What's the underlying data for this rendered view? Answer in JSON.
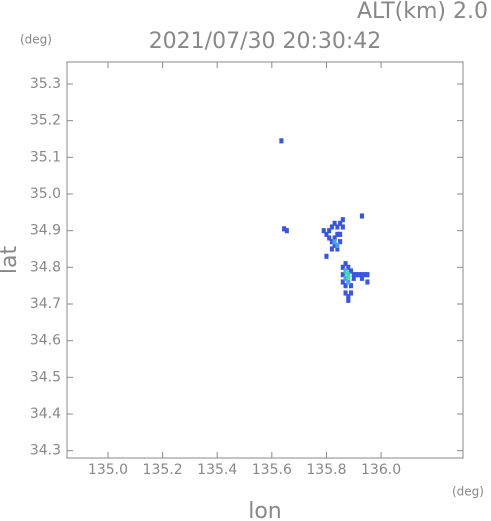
{
  "chart_data": {
    "type": "scatter",
    "title": "2021/07/30 20:30:42",
    "subtitle": "ALT(km) 2.0",
    "x_label": "lon",
    "y_label": "lat",
    "x_unit": "(deg)",
    "y_unit": "(deg)",
    "xlim": [
      134.85,
      136.3
    ],
    "ylim": [
      34.28,
      35.36
    ],
    "xticks": [
      {
        "value": 135,
        "label": "135.0"
      },
      135.2,
      135.4,
      135.6,
      135.8,
      {
        "value": 136,
        "label": "136.0"
      }
    ],
    "yticks": [
      34.3,
      34.4,
      34.5,
      34.6,
      34.7,
      34.8,
      34.9,
      {
        "value": 35,
        "label": "35.0"
      },
      35.1,
      35.2,
      35.3
    ],
    "series": [
      {
        "color": "#3a55e6",
        "x": [
          135.635,
          135.645,
          135.655,
          135.8,
          135.81,
          135.82,
          135.83,
          135.84,
          135.85,
          135.86,
          135.84,
          135.83,
          135.82,
          135.83,
          135.84,
          135.85,
          135.82,
          135.79,
          135.81,
          135.86,
          135.93,
          135.85,
          135.8,
          135.86,
          135.87,
          135.88,
          135.89,
          135.86,
          135.86,
          135.87,
          135.87,
          135.88,
          135.89,
          135.89,
          135.9,
          135.91,
          135.92,
          135.93,
          135.94,
          135.95,
          135.93,
          135.95,
          135.88,
          135.9
        ],
        "y": [
          35.145,
          34.905,
          34.9,
          34.89,
          34.9,
          34.91,
          34.92,
          34.91,
          34.92,
          34.91,
          34.89,
          34.88,
          34.87,
          34.86,
          34.85,
          34.87,
          34.85,
          34.9,
          34.88,
          34.93,
          34.94,
          34.89,
          34.83,
          34.8,
          34.81,
          34.8,
          34.79,
          34.78,
          34.76,
          34.75,
          34.73,
          34.72,
          34.73,
          34.75,
          34.78,
          34.78,
          34.78,
          34.78,
          34.78,
          34.78,
          34.77,
          34.76,
          34.71,
          34.77
        ]
      },
      {
        "color": "#4aa0f0",
        "x": [
          135.83,
          135.84,
          135.88,
          135.87,
          135.88,
          135.87
        ],
        "y": [
          34.87,
          34.86,
          34.78,
          34.77,
          34.76,
          34.79
        ]
      },
      {
        "color": "#40e0a0",
        "x": [
          135.875,
          135.88
        ],
        "y": [
          34.785,
          34.775
        ]
      }
    ]
  }
}
